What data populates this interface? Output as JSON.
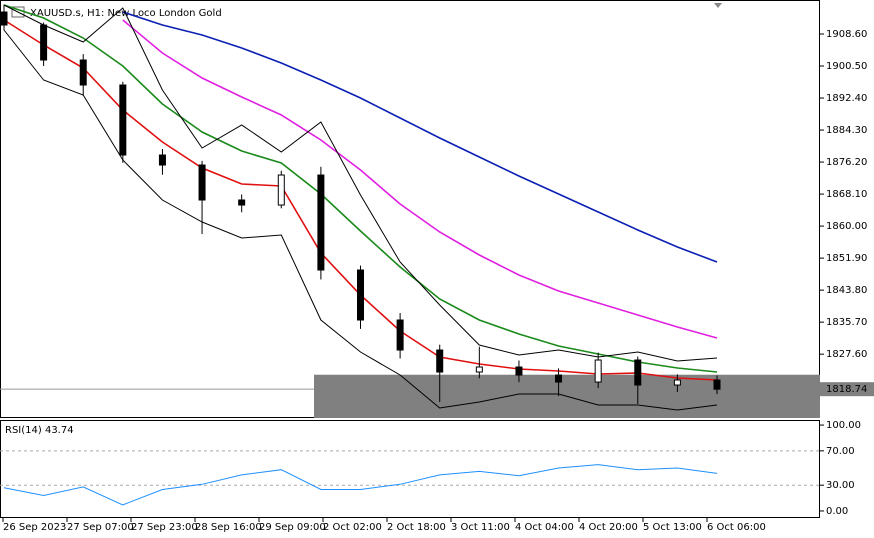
{
  "chart_data": [
    {
      "type": "candlestick",
      "title": "XAUUSD.s, H1: New Loco London Gold",
      "open": [
        1914.16,
        1910.87,
        1902.02,
        1895.69,
        1877.98,
        1875.45,
        1866.6,
        1865.33,
        1872.92,
        1848.89,
        1836.24,
        1828.65,
        1823.08,
        1824.35,
        1822.32,
        1820.55,
        1826.12,
        1819.79,
        1821.06
      ],
      "high": [
        1916.0,
        1911.5,
        1903.5,
        1896.5,
        1879.5,
        1876.5,
        1868.0,
        1874.0,
        1875.0,
        1850.0,
        1838.0,
        1830.0,
        1829.5,
        1826.0,
        1824.0,
        1828.0,
        1827.0,
        1822.5,
        1822.2
      ],
      "low": [
        1909.5,
        1900.5,
        1893.0,
        1876.0,
        1873.0,
        1858.0,
        1863.5,
        1864.5,
        1846.5,
        1834.0,
        1826.5,
        1815.5,
        1821.5,
        1820.5,
        1817.0,
        1819.0,
        1815.0,
        1818.0,
        1817.5
      ],
      "close": [
        1910.87,
        1902.02,
        1895.69,
        1877.98,
        1875.45,
        1866.6,
        1865.33,
        1872.92,
        1848.89,
        1836.24,
        1828.65,
        1823.08,
        1824.35,
        1822.32,
        1820.55,
        1826.12,
        1819.79,
        1821.06,
        1818.74
      ],
      "candle_color": "#000000",
      "series": [
        {
          "color": "#0a1fb4",
          "values": [
            null,
            null,
            null,
            1914.16,
            1910.87,
            1908.34,
            1905.06,
            1901.26,
            1896.96,
            1892.41,
            1887.35,
            1882.29,
            1877.48,
            1872.67,
            1868.12,
            1863.56,
            1859.01,
            1854.71,
            1850.91
          ]
        },
        {
          "color": "#e020e0",
          "values": [
            null,
            null,
            null,
            1912.14,
            1903.79,
            1897.47,
            1892.66,
            1888.1,
            1881.78,
            1874.19,
            1865.59,
            1858.5,
            1852.68,
            1847.62,
            1843.58,
            1840.54,
            1837.5,
            1834.47,
            1831.69
          ]
        },
        {
          "color": "#1a8a1a",
          "values": [
            1915.93,
            1912.65,
            1907.59,
            1900.5,
            1890.89,
            1883.8,
            1879.0,
            1875.96,
            1868.12,
            1858.76,
            1849.65,
            1841.55,
            1836.24,
            1832.7,
            1829.66,
            1827.64,
            1825.61,
            1824.1,
            1823.08
          ]
        },
        {
          "color": "#e01010",
          "values": [
            1912.14,
            1905.81,
            1900.0,
            1889.37,
            1881.27,
            1874.7,
            1870.65,
            1870.14,
            1853.19,
            1842.56,
            1833.46,
            1826.88,
            1825.11,
            1823.84,
            1823.34,
            1822.58,
            1822.83,
            1821.57,
            1821.06
          ]
        },
        {
          "color": "#000000",
          "values": [
            1915.93,
            1910.87,
            1906.57,
            1915.18,
            1894.43,
            1879.76,
            1885.57,
            1878.74,
            1886.33,
            1867.86,
            1850.91,
            1840.03,
            1829.91,
            1827.38,
            1828.65,
            1826.88,
            1828.14,
            1825.87,
            1826.63
          ]
        },
        {
          "color": "#000000",
          "values": [
            1909.61,
            1896.96,
            1893.16,
            1876.72,
            1866.6,
            1861.03,
            1856.99,
            1857.74,
            1836.24,
            1828.14,
            1822.32,
            1813.98,
            1815.49,
            1817.52,
            1817.52,
            1814.73,
            1814.73,
            1813.47,
            1814.73
          ]
        }
      ],
      "ylim": [
        1811.45,
        1917.2
      ],
      "yticks": [
        {
          "value": 1908.6,
          "label": "1908.60"
        },
        {
          "value": 1900.5,
          "label": "1900.50"
        },
        {
          "value": 1892.4,
          "label": "1892.40"
        },
        {
          "value": 1884.3,
          "label": "1884.30"
        },
        {
          "value": 1876.2,
          "label": "1876.20"
        },
        {
          "value": 1868.1,
          "label": "1868.10"
        },
        {
          "value": 1860.0,
          "label": "1860.00"
        },
        {
          "value": 1851.9,
          "label": "1851.90"
        },
        {
          "value": 1843.8,
          "label": "1843.80"
        },
        {
          "value": 1835.7,
          "label": "1835.70"
        },
        {
          "value": 1827.6,
          "label": "1827.60"
        }
      ],
      "last_price": 1818.74,
      "zone_top": 1822.4,
      "x_labels": [
        "26 Sep 2023",
        "27 Sep 07:00",
        "27 Sep 23:00",
        "28 Sep 16:00",
        "29 Sep 09:00",
        "2 Oct 02:00",
        "2 Oct 18:00",
        "3 Oct 11:00",
        "4 Oct 04:00",
        "4 Oct 20:00",
        "5 Oct 13:00",
        "6 Oct 06:00"
      ]
    },
    {
      "type": "line",
      "title": "RSI(14) 43.74",
      "color": "#1e90ff",
      "values": [
        27,
        18,
        28,
        7,
        25,
        31,
        42,
        48,
        25,
        25,
        31,
        42,
        46,
        41,
        50,
        54,
        48,
        50,
        43.74
      ],
      "ylim": [
        -8.2,
        105.9
      ],
      "yticks": [
        {
          "value": 100,
          "label": "100.00"
        },
        {
          "value": 70,
          "label": "70.00"
        },
        {
          "value": 30,
          "label": "30.00"
        },
        {
          "value": 0,
          "label": "0.00"
        }
      ],
      "levels": [
        70,
        30
      ]
    }
  ]
}
